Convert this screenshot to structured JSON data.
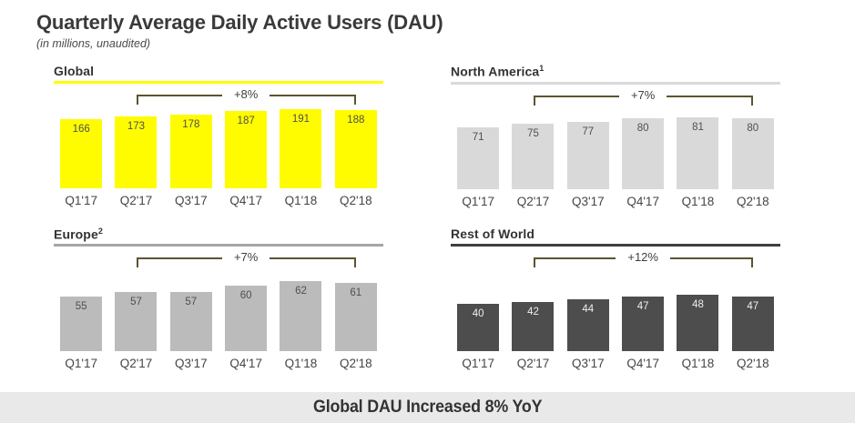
{
  "page": {
    "title": "Quarterly Average Daily Active Users (DAU)",
    "subtitle": "(in millions, unaudited)",
    "footer_banner": "Global DAU Increased 8% YoY"
  },
  "colors": {
    "accent_yellow": "#FFFC00",
    "banner_bg": "#E9E9E9",
    "bracket_line": "#5B5430"
  },
  "chart_data": [
    {
      "type": "bar",
      "title": "Global",
      "title_sup": "",
      "categories": [
        "Q1'17",
        "Q2'17",
        "Q3'17",
        "Q4'17",
        "Q1'18",
        "Q2'18"
      ],
      "values": [
        166,
        173,
        178,
        187,
        191,
        188
      ],
      "growth": {
        "label": "+8%",
        "from": "Q2'17",
        "to": "Q2'18"
      },
      "bar_color": "#FFFC00",
      "rule_color": "#FFFC00",
      "value_label_color": "#4f4f4f"
    },
    {
      "type": "bar",
      "title": "North America",
      "title_sup": "1",
      "categories": [
        "Q1'17",
        "Q2'17",
        "Q3'17",
        "Q4'17",
        "Q1'18",
        "Q2'18"
      ],
      "values": [
        71,
        75,
        77,
        80,
        81,
        80
      ],
      "growth": {
        "label": "+7%",
        "from": "Q2'17",
        "to": "Q2'18"
      },
      "bar_color": "#D9D9D9",
      "rule_color": "#DADADA",
      "value_label_color": "#4f4f4f"
    },
    {
      "type": "bar",
      "title": "Europe",
      "title_sup": "2",
      "categories": [
        "Q1'17",
        "Q2'17",
        "Q3'17",
        "Q4'17",
        "Q1'18",
        "Q2'18"
      ],
      "values": [
        55,
        57,
        57,
        60,
        62,
        61
      ],
      "growth": {
        "label": "+7%",
        "from": "Q2'17",
        "to": "Q2'18"
      },
      "bar_color": "#BBBBBB",
      "rule_color": "#A6A6A6",
      "value_label_color": "#4f4f4f"
    },
    {
      "type": "bar",
      "title": "Rest of World",
      "title_sup": "",
      "categories": [
        "Q1'17",
        "Q2'17",
        "Q3'17",
        "Q4'17",
        "Q1'18",
        "Q2'18"
      ],
      "values": [
        40,
        42,
        44,
        47,
        48,
        47
      ],
      "growth": {
        "label": "+12%",
        "from": "Q2'17",
        "to": "Q2'18"
      },
      "bar_color": "#4D4D4D",
      "rule_color": "#3F3F3F",
      "value_label_color": "#EFEFEF"
    }
  ]
}
